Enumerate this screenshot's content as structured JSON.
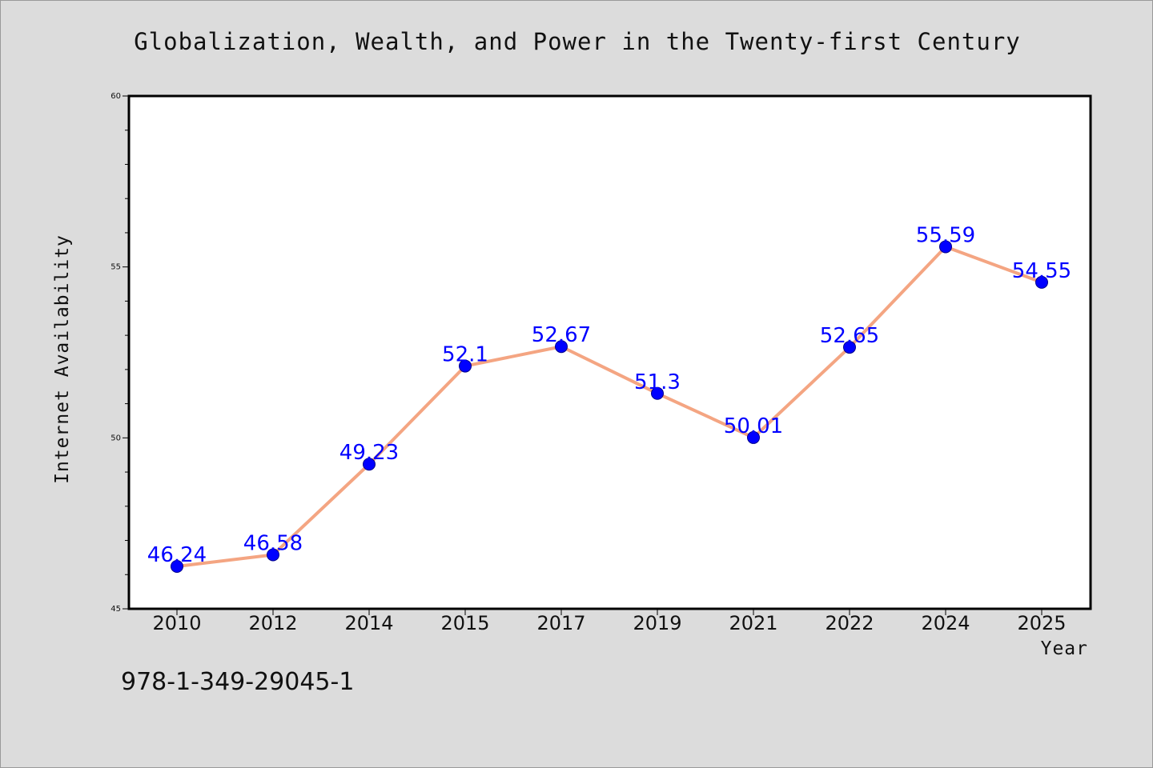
{
  "chart_data": {
    "type": "line",
    "title": "Globalization, Wealth, and Power in the Twenty-first Century",
    "xlabel": "Year",
    "ylabel": "Internet Availability",
    "categories": [
      "2010",
      "2012",
      "2014",
      "2015",
      "2017",
      "2019",
      "2021",
      "2022",
      "2024",
      "2025"
    ],
    "series": [
      {
        "values": [
          46.24,
          46.58,
          49.23,
          52.1,
          52.67,
          51.3,
          50.01,
          52.65,
          55.59,
          54.55
        ],
        "labels": [
          "46.24",
          "46.58",
          "49.23",
          "52.1",
          "52.67",
          "51.3",
          "50.01",
          "52.65",
          "55.59",
          "54.55"
        ]
      }
    ],
    "ylim": [
      45,
      60
    ],
    "yticks": [
      "45",
      "50",
      "55",
      "60"
    ],
    "line_color": "#f4a582",
    "marker_color": "#0000ff",
    "label_color": "#0000ff",
    "grid": false
  },
  "footer": {
    "isbn": "978-1-349-29045-1"
  }
}
